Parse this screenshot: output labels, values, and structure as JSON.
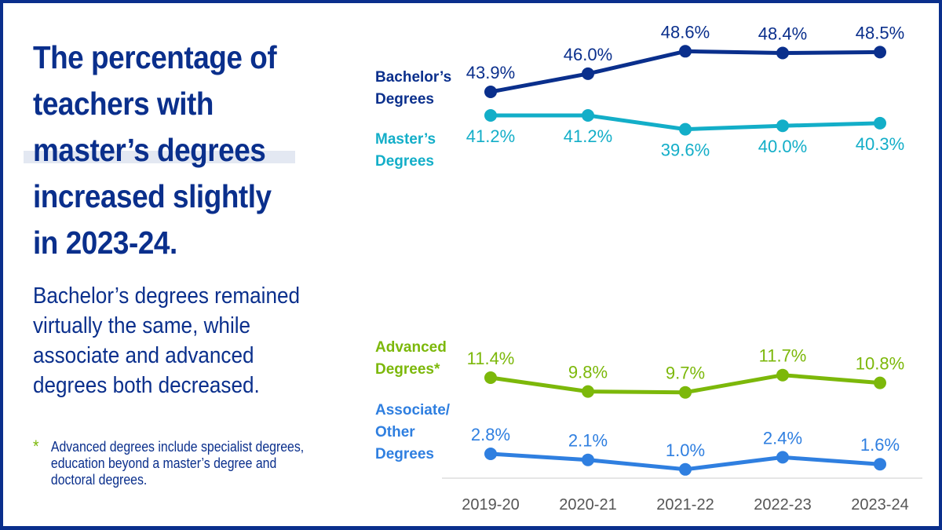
{
  "headline": "The percentage of teachers with master’s degrees increased slightly in 2023-24.",
  "subtext": "Bachelor’s degrees remained virtually the same, while associate and advanced degrees both decreased.",
  "footnote": {
    "symbol": "*",
    "text": "Advanced degrees include specialist degrees, education beyond a master’s degree and doctoral degrees."
  },
  "chart_data": {
    "type": "line",
    "title": "The percentage of teachers with master’s degrees increased slightly in 2023-24.",
    "xlabel": "",
    "ylabel": "",
    "x": [
      "2019-20",
      "2020-21",
      "2021-22",
      "2022-23",
      "2023-24"
    ],
    "grid": false,
    "legend": "left-inline",
    "series": [
      {
        "name": "Bachelor’s Degrees",
        "label_lines": [
          "Bachelor’s",
          "Degrees"
        ],
        "color": "#0a2f8c",
        "values": [
          43.9,
          46.0,
          48.6,
          48.4,
          48.5
        ],
        "labels": [
          "43.9%",
          "46.0%",
          "48.6%",
          "48.4%",
          "48.5%"
        ],
        "label_position": "above"
      },
      {
        "name": "Master’s Degrees",
        "label_lines": [
          "Master’s",
          "Degrees"
        ],
        "color": "#13aec8",
        "values": [
          41.2,
          41.2,
          39.6,
          40.0,
          40.3
        ],
        "labels": [
          "41.2%",
          "41.2%",
          "39.6%",
          "40.0%",
          "40.3%"
        ],
        "label_position": "below"
      },
      {
        "name": "Advanced Degrees*",
        "label_lines": [
          "Advanced",
          "Degrees*"
        ],
        "color": "#7cb80a",
        "values": [
          11.4,
          9.8,
          9.7,
          11.7,
          10.8
        ],
        "labels": [
          "11.4%",
          "9.8%",
          "9.7%",
          "11.7%",
          "10.8%"
        ],
        "label_position": "above"
      },
      {
        "name": "Associate/Other Degrees",
        "label_lines": [
          "Associate/",
          "Other",
          "Degrees"
        ],
        "color": "#2f7fe0",
        "values": [
          2.8,
          2.1,
          1.0,
          2.4,
          1.6
        ],
        "labels": [
          "2.8%",
          "2.1%",
          "1.0%",
          "2.4%",
          "1.6%"
        ],
        "label_position": "above"
      }
    ]
  }
}
